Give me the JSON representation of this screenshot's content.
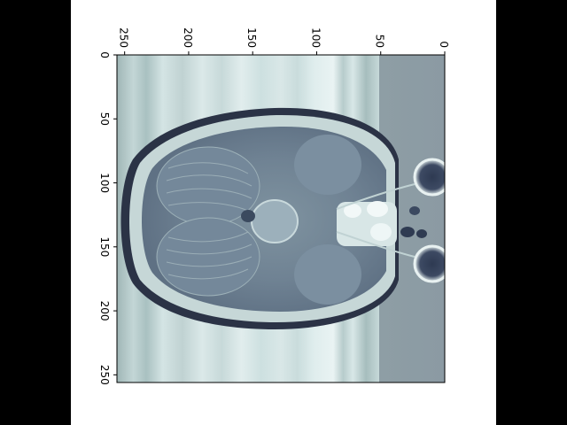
{
  "figure": {
    "background": "#ffffff",
    "side_bars": "#000000",
    "colormap": "bone",
    "image_description_kind": "axial MRI slice of a head, displayed rotated 90 degrees",
    "image_shape": [
      256,
      256
    ]
  },
  "axes": {
    "top_ticks": [
      "250",
      "200",
      "150",
      "100",
      "50",
      "0"
    ],
    "left_ticks": [
      "0",
      "50",
      "100",
      "150",
      "200",
      "250"
    ],
    "top_tick_values": [
      250,
      200,
      150,
      100,
      50,
      0
    ],
    "left_tick_values": [
      0,
      50,
      100,
      150,
      200,
      250
    ],
    "top_range": [
      256,
      0
    ],
    "left_range": [
      0,
      256
    ],
    "tick_label_rotation": "90deg"
  }
}
